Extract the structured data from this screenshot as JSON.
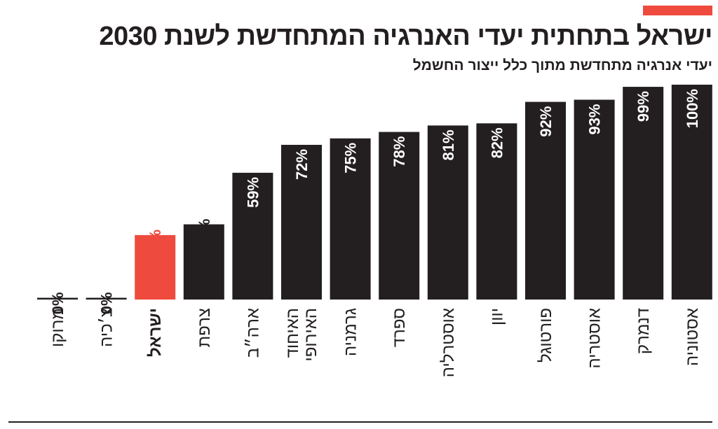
{
  "title": "ישראל בתחתית יעדי האנרגיה המתחדשת לשנת 2030",
  "subtitle": "יעדי אנרגיה מתחדשת מתוך כלל ייצור החשמל",
  "colors": {
    "highlight": "#ef4a3e",
    "bar": "#231f20",
    "accent": "#ef4a3e"
  },
  "chart_data": {
    "type": "bar",
    "title": "ישראל בתחתית יעדי האנרגיה המתחדשת לשנת 2030",
    "subtitle": "יעדי אנרגיה מתחדשת מתוך כלל ייצור החשמל",
    "categories": [
      "מרוקו",
      "צ׳כיה",
      "ישראל",
      "צרפת",
      "ארה״ב",
      "האיחוד האירופי",
      "גרמניה",
      "ספרד",
      "אוסטרליה",
      "יוון",
      "פורטוגל",
      "אוסטריה",
      "דנמרק",
      "אסטוניה"
    ],
    "values": [
      0,
      0,
      30,
      35,
      59,
      72,
      75,
      78,
      81,
      82,
      92,
      93,
      99,
      100
    ],
    "data_labels": [
      "0%",
      "0%",
      "30%",
      "35%",
      "59%",
      "72%",
      "75%",
      "78%",
      "81%",
      "82%",
      "92%",
      "93%",
      "99%",
      "100%"
    ],
    "highlight": "ישראל",
    "unit": "%",
    "ylim": [
      0,
      100
    ],
    "grid": false,
    "legend": "none"
  }
}
